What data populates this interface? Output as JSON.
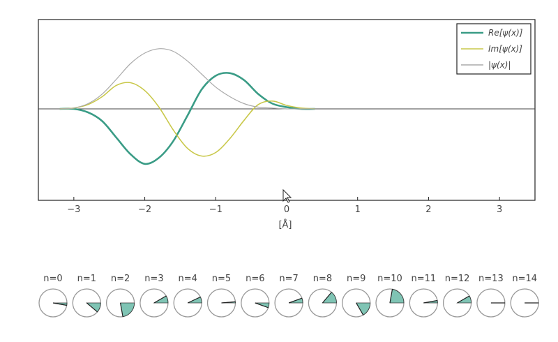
{
  "chart_data": [
    {
      "type": "line",
      "title": "",
      "xlabel": "[Å]",
      "ylabel": "",
      "xlim": [
        -3.5,
        3.5
      ],
      "ylim": [
        -1.0,
        1.0
      ],
      "xticks": [
        -3,
        -2,
        -1,
        0,
        1,
        2,
        3
      ],
      "xtick_labels": [
        "−3",
        "−2",
        "−1",
        "0",
        "1",
        "2",
        "3"
      ],
      "grid": false,
      "legend_position": "top-right",
      "x": [
        -3.2,
        -3.0,
        -2.8,
        -2.6,
        -2.4,
        -2.2,
        -2.0,
        -1.8,
        -1.6,
        -1.4,
        -1.2,
        -1.0,
        -0.8,
        -0.6,
        -0.4,
        -0.2,
        0.0,
        0.2,
        0.4
      ],
      "series": [
        {
          "name": "Re[ψ(x)]",
          "color": "#3a9c86",
          "values": [
            0.0,
            0.0,
            -0.04,
            -0.14,
            -0.33,
            -0.52,
            -0.63,
            -0.56,
            -0.37,
            -0.08,
            0.22,
            0.38,
            0.41,
            0.33,
            0.17,
            0.06,
            0.02,
            0.0,
            0.0
          ]
        },
        {
          "name": "Im[ψ(x)]",
          "color": "#c9c84a",
          "values": [
            0.0,
            0.01,
            0.05,
            0.14,
            0.27,
            0.3,
            0.21,
            0.02,
            -0.24,
            -0.45,
            -0.54,
            -0.5,
            -0.34,
            -0.13,
            0.05,
            0.09,
            0.04,
            0.01,
            0.0
          ]
        },
        {
          "name": "|ψ(x)|",
          "color": "#aaaaaa",
          "values": [
            0.0,
            0.01,
            0.06,
            0.17,
            0.34,
            0.52,
            0.64,
            0.69,
            0.66,
            0.55,
            0.4,
            0.25,
            0.14,
            0.06,
            0.02,
            0.01,
            0.0,
            0.0,
            0.0
          ]
        }
      ]
    },
    {
      "type": "dial",
      "labels": [
        "n=0",
        "n=1",
        "n=2",
        "n=3",
        "n=4",
        "n=5",
        "n=6",
        "n=7",
        "n=8",
        "n=9",
        "n=10",
        "n=11",
        "n=12",
        "n=13",
        "n=14"
      ],
      "phase_deg": [
        -10,
        -40,
        -80,
        30,
        25,
        5,
        -20,
        20,
        50,
        -60,
        80,
        10,
        30,
        0,
        0
      ],
      "fill_color": "#7fc4b4"
    }
  ]
}
